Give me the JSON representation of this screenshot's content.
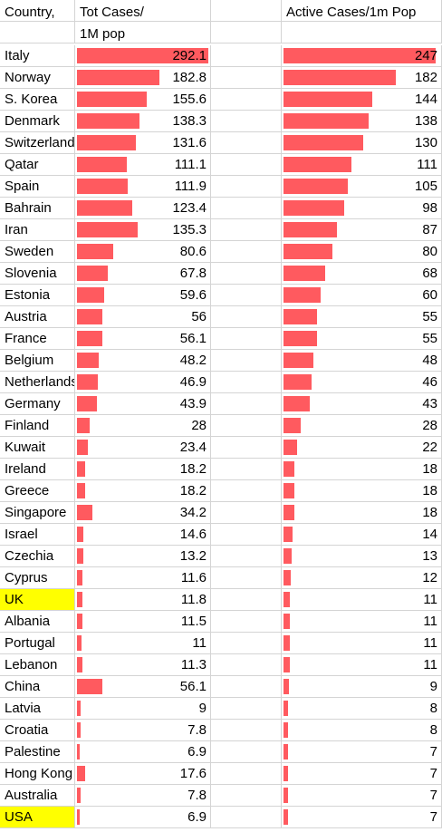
{
  "headers": {
    "country": "Country,",
    "total_line1": "Tot Cases/",
    "total_line2": "1M pop",
    "active": "Active Cases/1m Pop"
  },
  "highlight_color": "#ffff00",
  "bar_color": "#ff5a5f",
  "rows": [
    {
      "country": "Italy",
      "total": "292.1",
      "active": "247"
    },
    {
      "country": "Norway",
      "total": "182.8",
      "active": "182"
    },
    {
      "country": "S. Korea",
      "total": "155.6",
      "active": "144"
    },
    {
      "country": "Denmark",
      "total": "138.3",
      "active": "138"
    },
    {
      "country": "Switzerland",
      "total": "131.6",
      "active": "130"
    },
    {
      "country": "Qatar",
      "total": "111.1",
      "active": "111"
    },
    {
      "country": "Spain",
      "total": "111.9",
      "active": "105"
    },
    {
      "country": "Bahrain",
      "total": "123.4",
      "active": "98"
    },
    {
      "country": "Iran",
      "total": "135.3",
      "active": "87"
    },
    {
      "country": "Sweden",
      "total": "80.6",
      "active": "80"
    },
    {
      "country": "Slovenia",
      "total": "67.8",
      "active": "68"
    },
    {
      "country": "Estonia",
      "total": "59.6",
      "active": "60"
    },
    {
      "country": "Austria",
      "total": "56",
      "active": "55"
    },
    {
      "country": "France",
      "total": "56.1",
      "active": "55"
    },
    {
      "country": "Belgium",
      "total": "48.2",
      "active": "48"
    },
    {
      "country": "Netherlands",
      "total": "46.9",
      "active": "46"
    },
    {
      "country": "Germany",
      "total": "43.9",
      "active": "43"
    },
    {
      "country": "Finland",
      "total": "28",
      "active": "28"
    },
    {
      "country": "Kuwait",
      "total": "23.4",
      "active": "22"
    },
    {
      "country": "Ireland",
      "total": "18.2",
      "active": "18"
    },
    {
      "country": "Greece",
      "total": "18.2",
      "active": "18"
    },
    {
      "country": "Singapore",
      "total": "34.2",
      "active": "18"
    },
    {
      "country": "Israel",
      "total": "14.6",
      "active": "14"
    },
    {
      "country": "Czechia",
      "total": "13.2",
      "active": "13"
    },
    {
      "country": "Cyprus",
      "total": "11.6",
      "active": "12"
    },
    {
      "country": "UK",
      "total": "11.8",
      "active": "11",
      "highlight": true
    },
    {
      "country": "Albania",
      "total": "11.5",
      "active": "11"
    },
    {
      "country": "Portugal",
      "total": "11",
      "active": "11"
    },
    {
      "country": "Lebanon",
      "total": "11.3",
      "active": "11"
    },
    {
      "country": "China",
      "total": "56.1",
      "active": "9"
    },
    {
      "country": "Latvia",
      "total": "9",
      "active": "8"
    },
    {
      "country": "Croatia",
      "total": "7.8",
      "active": "8"
    },
    {
      "country": "Palestine",
      "total": "6.9",
      "active": "7"
    },
    {
      "country": "Hong Kong",
      "total": "17.6",
      "active": "7"
    },
    {
      "country": "Australia",
      "total": "7.8",
      "active": "7"
    },
    {
      "country": "USA",
      "total": "6.9",
      "active": "7",
      "highlight": true
    }
  ]
}
